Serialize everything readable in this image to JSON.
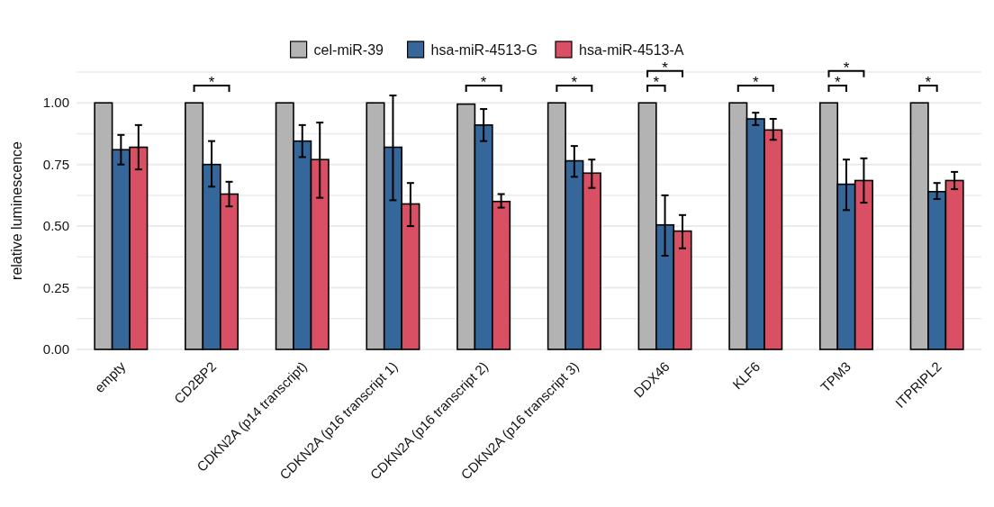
{
  "chart_data": {
    "type": "bar",
    "ylabel": "relative luminescence",
    "categories": [
      "empty",
      "CD2BP2",
      "CDKN2A (p14 transcript)",
      "CDKN2A (p16 transcript 1)",
      "CDKN2A (p16 transcript 2)",
      "CDKN2A (p16 transcript 3)",
      "DDX46",
      "KLF6",
      "TPM3",
      "ITPRIPL2"
    ],
    "series": [
      {
        "name": "cel-miR-39",
        "color": "#b3b3b3",
        "values": [
          1,
          1,
          1,
          1,
          0.995,
          1,
          1,
          1,
          1,
          1
        ]
      },
      {
        "name": "hsa-miR-4513-G",
        "color": "#35679a",
        "values": [
          0.81,
          0.75,
          0.845,
          0.82,
          0.91,
          0.765,
          0.505,
          0.935,
          0.67,
          0.64
        ],
        "errors": [
          [
            0.75,
            0.87
          ],
          [
            0.66,
            0.845
          ],
          [
            0.78,
            0.91
          ],
          [
            0.605,
            1.03
          ],
          [
            0.845,
            0.975
          ],
          [
            0.7,
            0.825
          ],
          [
            0.38,
            0.625
          ],
          [
            0.91,
            0.96
          ],
          [
            0.565,
            0.77
          ],
          [
            0.61,
            0.675
          ]
        ]
      },
      {
        "name": "hsa-miR-4513-A",
        "color": "#d95064",
        "values": [
          0.82,
          0.63,
          0.77,
          0.59,
          0.6,
          0.715,
          0.48,
          0.89,
          0.685,
          0.685
        ],
        "errors": [
          [
            0.73,
            0.91
          ],
          [
            0.58,
            0.68
          ],
          [
            0.615,
            0.92
          ],
          [
            0.5,
            0.675
          ],
          [
            0.575,
            0.63
          ],
          [
            0.655,
            0.77
          ],
          [
            0.41,
            0.545
          ],
          [
            0.85,
            0.935
          ],
          [
            0.595,
            0.775
          ],
          [
            0.65,
            0.72
          ]
        ]
      }
    ],
    "ylim": [
      0,
      1.125
    ],
    "yticks": [
      {
        "value": 0,
        "label": "0.00"
      },
      {
        "value": 0.125,
        "label": null
      },
      {
        "value": 0.25,
        "label": "0.25"
      },
      {
        "value": 0.375,
        "label": null
      },
      {
        "value": 0.5,
        "label": "0.50"
      },
      {
        "value": 0.625,
        "label": null
      },
      {
        "value": 0.75,
        "label": "0.75"
      },
      {
        "value": 0.875,
        "label": null
      },
      {
        "value": 1,
        "label": "1.00"
      },
      {
        "value": 1.125,
        "label": null
      }
    ],
    "grid": "y",
    "legend": "top",
    "annotations": [
      "*",
      "*",
      "*",
      "*",
      "*",
      "*",
      "*",
      "*",
      "*"
    ]
  }
}
